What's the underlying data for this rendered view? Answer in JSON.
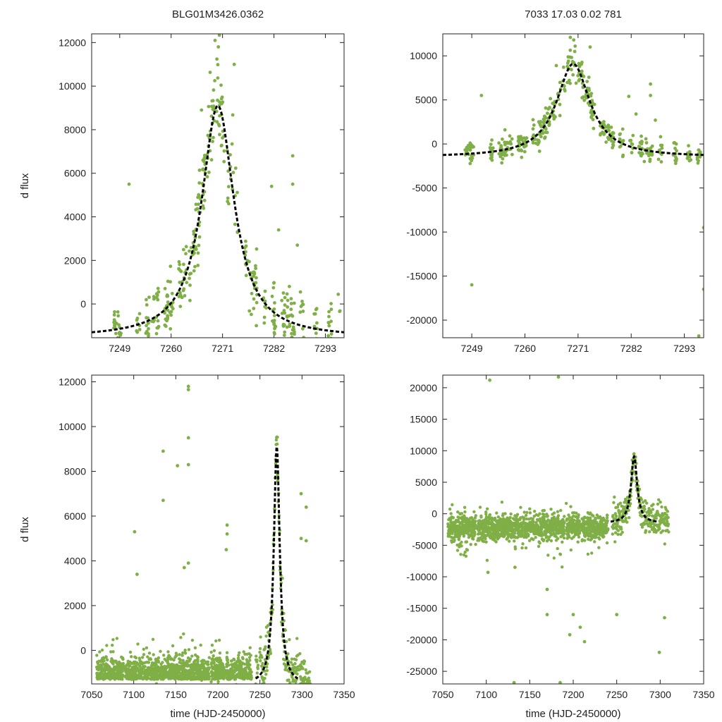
{
  "titles": {
    "left": "BLG01M3426.0362",
    "right": "7033  17.03  0.02  781"
  },
  "colors": {
    "points": "#7faf46",
    "model": "#000000",
    "frame": "#222222"
  },
  "chart_data": [
    {
      "id": "top-left",
      "type": "scatter",
      "title": "BLG01M3426.0362",
      "xlabel": "",
      "ylabel": "d flux",
      "xlim": [
        7243,
        7297
      ],
      "ylim": [
        -1550,
        12400
      ],
      "xticks": [
        7249,
        7260,
        7271,
        7282,
        7293
      ],
      "yticks": [
        0,
        2000,
        4000,
        6000,
        8000,
        10000,
        12000
      ],
      "model": {
        "peak_time": 7270,
        "peak_flux": 9100,
        "baseline": -1550,
        "width": 4.2,
        "line": "dashed"
      },
      "points_summary": "dense green photometry points scattered around the model curve, peak flux near 12000 at HJD 7269-7270"
    },
    {
      "id": "top-right",
      "type": "scatter",
      "title": "7033  17.03  0.02  781",
      "xlabel": "",
      "ylabel": "",
      "xlim": [
        7243,
        7297
      ],
      "ylim": [
        -22000,
        12500
      ],
      "xticks": [
        7249,
        7260,
        7271,
        7282,
        7293
      ],
      "yticks": [
        -20000,
        -15000,
        -10000,
        -5000,
        0,
        5000,
        10000
      ],
      "model": {
        "peak_time": 7270,
        "peak_flux": 9100,
        "baseline": -1500,
        "width": 4.2,
        "line": "dashed"
      },
      "outliers": [
        [
          7249,
          -16000
        ],
        [
          7297,
          -16500
        ],
        [
          7297,
          -9500
        ],
        [
          7296,
          -21800
        ]
      ]
    },
    {
      "id": "bottom-left",
      "type": "scatter",
      "title": "",
      "xlabel": "time (HJD-2450000)",
      "ylabel": "d flux",
      "xlim": [
        7050,
        7350
      ],
      "ylim": [
        -1500,
        12300
      ],
      "xticks": [
        7050,
        7100,
        7150,
        7200,
        7250,
        7300,
        7350
      ],
      "yticks": [
        0,
        2000,
        4000,
        6000,
        8000,
        10000,
        12000
      ],
      "model": {
        "peak_time": 7270,
        "peak_flux": 9100,
        "baseline": -1550,
        "width": 4.2,
        "x_range": [
          7245,
          7295
        ],
        "line": "dashed"
      },
      "outliers": [
        [
          7135,
          8900
        ],
        [
          7135,
          6700
        ],
        [
          7165,
          11800
        ],
        [
          7165,
          11650
        ],
        [
          7165,
          9500
        ],
        [
          7165,
          8300
        ],
        [
          7152,
          8250
        ],
        [
          7101,
          5300
        ],
        [
          7104,
          3400
        ],
        [
          7211,
          5600
        ],
        [
          7211,
          5200
        ],
        [
          7210,
          4500
        ],
        [
          7299,
          7000
        ],
        [
          7305,
          6400
        ],
        [
          7305,
          4900
        ],
        [
          7299,
          5000
        ],
        [
          7165,
          3900
        ],
        [
          7160,
          3700
        ]
      ]
    },
    {
      "id": "bottom-right",
      "type": "scatter",
      "title": "",
      "xlabel": "time (HJD-2450000)",
      "ylabel": "",
      "xlim": [
        7050,
        7350
      ],
      "ylim": [
        -27000,
        22000
      ],
      "xticks": [
        7050,
        7100,
        7150,
        7200,
        7250,
        7300,
        7350
      ],
      "yticks": [
        -25000,
        -20000,
        -15000,
        -10000,
        -5000,
        0,
        5000,
        10000,
        15000,
        20000
      ],
      "model": {
        "peak_time": 7270,
        "peak_flux": 9100,
        "baseline": -1500,
        "width": 4.2,
        "x_range": [
          7243,
          7297
        ],
        "line": "dashed"
      },
      "outliers": [
        [
          7104,
          21200
        ],
        [
          7183,
          21700
        ],
        [
          7132,
          -26800
        ],
        [
          7185,
          -26800
        ],
        [
          7299,
          -22000
        ],
        [
          7213,
          -20300
        ],
        [
          7196,
          -19200
        ],
        [
          7170,
          -16000
        ],
        [
          7170,
          -12000
        ],
        [
          7200,
          -16000
        ],
        [
          7250,
          -16000
        ],
        [
          7305,
          -16500
        ],
        [
          7102,
          -9300
        ],
        [
          7133,
          -8500
        ],
        [
          7208,
          -18000
        ]
      ]
    }
  ]
}
